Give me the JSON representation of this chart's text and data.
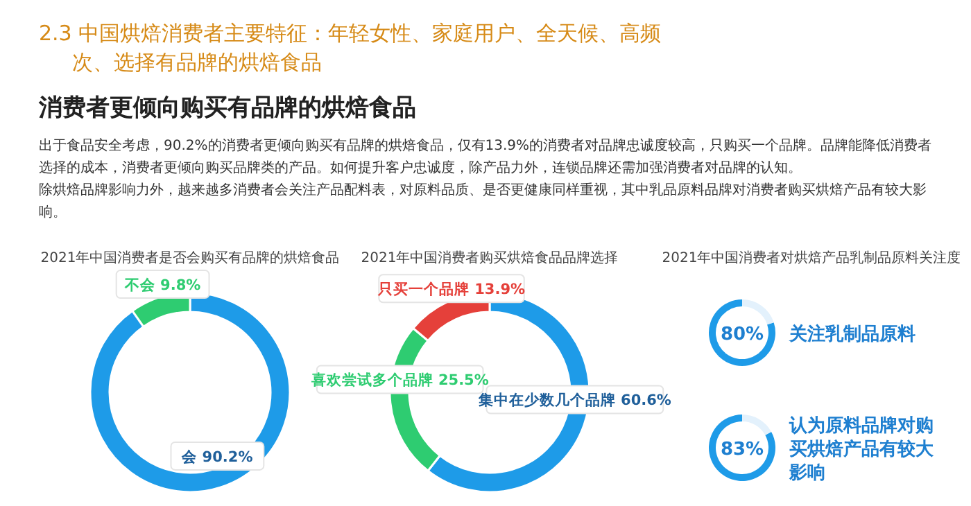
{
  "chart_data": [
    {
      "type": "other",
      "title": "2.3 中国烘焙消费者主要特征：年轻女性、家庭用户、全天候、高频次、选择有品牌的烘焙食品",
      "subtitle": "消费者更倾向购买有品牌的烘焙食品",
      "annotations": [
        "出于食品安全考虑，90.2%的消费者更倾向购买有品牌的烘焙食品，仅有13.9%的消费者对品牌忠诚度较高，只购买一个品牌。品牌能降低消费者选择的成本，消费者更倾向购买品牌类的产品。如何提升客户忠诚度，除产品力外，连锁品牌还需加强消费者对品牌的认知。",
        "除烘焙品牌影响力外，越来越多消费者会关注产品配料表，对原料品质、是否更健康同样重视，其中乳品原料品牌对消费者购买烘焙产品有较大影响。"
      ]
    },
    {
      "type": "donut",
      "title": "2021年中国消费者是否会购买有品牌的烘焙食品",
      "categories": [
        "会",
        "不会"
      ],
      "values": [
        90.2,
        9.8
      ],
      "colors": [
        "#1e9be8",
        "#2ecc71"
      ],
      "value_labels": [
        "90.2%",
        "9.8%"
      ]
    },
    {
      "type": "donut",
      "title": "2021年中国消费者购买烘焙食品品牌选择",
      "categories": [
        "集中在少数几个品牌",
        "喜欢尝试多个品牌",
        "只买一个品牌"
      ],
      "values": [
        60.6,
        25.5,
        13.9
      ],
      "colors": [
        "#1e9be8",
        "#2ecc71",
        "#e5403a"
      ],
      "value_labels": [
        "60.6%",
        "25.5%",
        "13.9%"
      ]
    },
    {
      "type": "donut",
      "title": "2021年中国消费者对烘焙产品乳制品原料关注度",
      "categories": [
        "关注乳制品原料",
        null
      ],
      "values": [
        80,
        20
      ],
      "colors": [
        "#1e9be8",
        "#e3f1fc"
      ],
      "value_labels": [
        "80%",
        null
      ]
    },
    {
      "type": "donut",
      "categories": [
        "认为原料品牌对购买烘焙产品有较大影响",
        null
      ],
      "values": [
        83,
        17
      ],
      "colors": [
        "#1e9be8",
        "#e3f1fc"
      ],
      "value_labels": [
        "83%",
        null
      ]
    }
  ]
}
